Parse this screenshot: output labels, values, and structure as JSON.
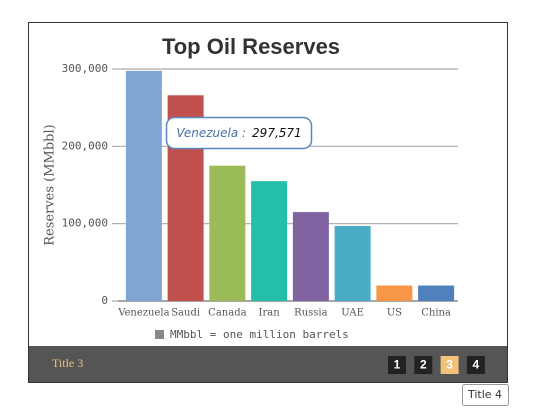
{
  "chart_data": {
    "type": "bar",
    "title": "Top Oil Reserves",
    "y_label": "Reserves (MMbbl)",
    "categories": [
      "Venezuela",
      "Saudi",
      "Canada",
      "Iran",
      "Russia",
      "UAE",
      "US",
      "China"
    ],
    "values": [
      297571,
      266000,
      175000,
      155000,
      115000,
      97000,
      20000,
      20000
    ],
    "colors": [
      "#7fa6d3",
      "#c0504d",
      "#9bbb59",
      "#23bfa9",
      "#8064a2",
      "#4bacc6",
      "#f79646",
      "#4f81bd"
    ],
    "ylim": [
      0,
      300000
    ],
    "yticks": [
      0,
      {
        "value": 100000,
        "label": "100,000"
      },
      {
        "value": 200000,
        "label": "200,000"
      },
      {
        "value": 300000,
        "label": "300,000"
      }
    ],
    "grid": true,
    "legend": {
      "name": "MMbbl = one million barrels",
      "color": "#888888"
    },
    "tooltip": {
      "category": "Venezuela :",
      "text": "297,571"
    }
  },
  "slideshow": {
    "caption": "Title 3",
    "pages": [
      "1",
      "2",
      "3",
      "4"
    ],
    "active": 2,
    "hover_tooltip": "Title 4"
  }
}
